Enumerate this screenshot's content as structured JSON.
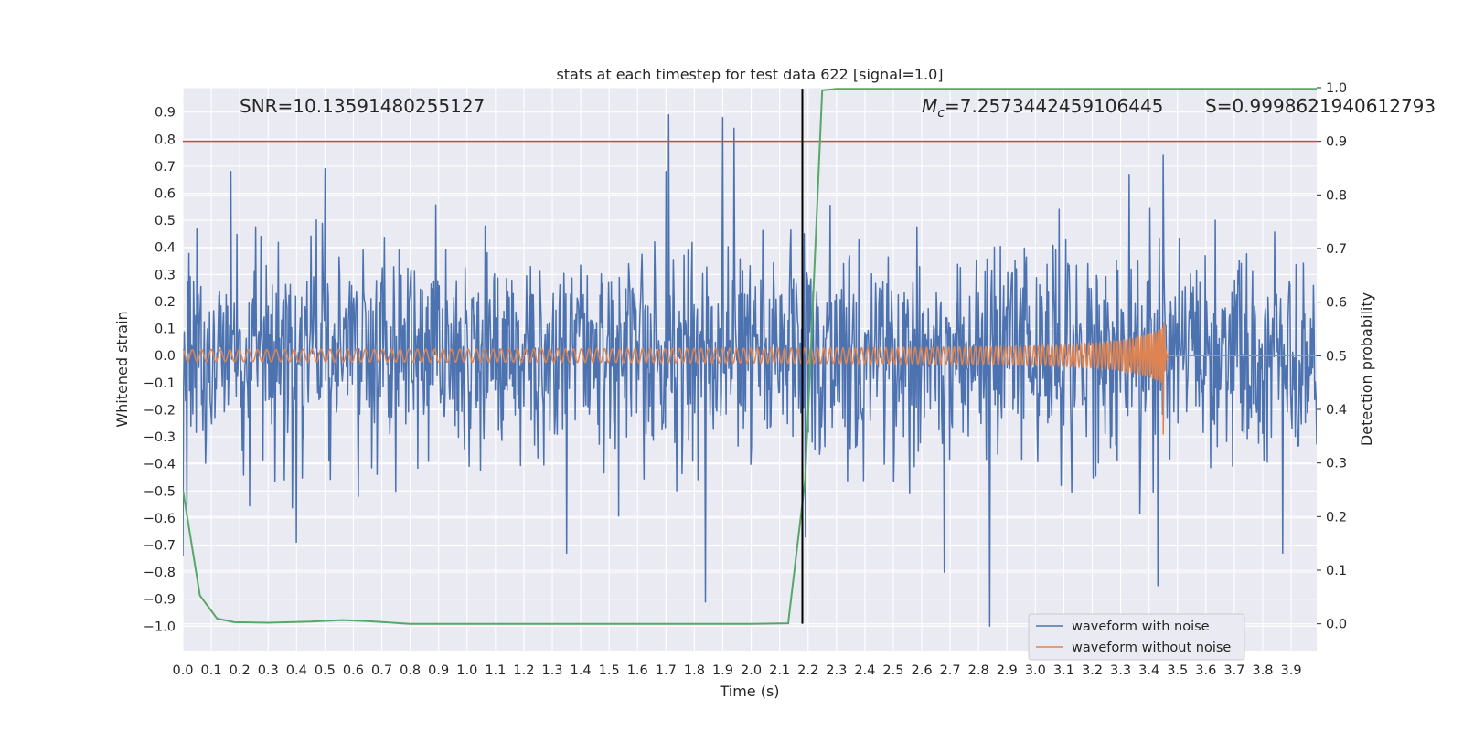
{
  "chart_data": {
    "type": "line",
    "title": "stats at each timestep for test data 622 [signal=1.0]",
    "xlabel": "Time (s)",
    "ylabel": "Whitened strain",
    "y2label": "Detection probability",
    "xlim": [
      0.0,
      3.99
    ],
    "ylim": [
      -1.09,
      0.99
    ],
    "y2lim": [
      -0.05,
      1.0
    ],
    "grid": true,
    "legend_position": "lower-right",
    "x_ticks": [
      "0.0",
      "0.1",
      "0.2",
      "0.3",
      "0.4",
      "0.5",
      "0.6",
      "0.7",
      "0.8",
      "0.9",
      "1.0",
      "1.1",
      "1.2",
      "1.3",
      "1.4",
      "1.5",
      "1.6",
      "1.7",
      "1.8",
      "1.9",
      "2.0",
      "2.1",
      "2.2",
      "2.3",
      "2.4",
      "2.5",
      "2.6",
      "2.7",
      "2.8",
      "2.9",
      "3.0",
      "3.1",
      "3.2",
      "3.3",
      "3.4",
      "3.5",
      "3.6",
      "3.7",
      "3.8",
      "3.9"
    ],
    "y_ticks": [
      "0.9",
      "0.8",
      "0.7",
      "0.6",
      "0.5",
      "0.4",
      "0.3",
      "0.2",
      "0.1",
      "0.0",
      "−0.1",
      "−0.2",
      "−0.3",
      "−0.4",
      "−0.5",
      "−0.6",
      "−0.7",
      "−0.8",
      "−0.9",
      "−1.0"
    ],
    "y2_ticks": [
      "1.0",
      "0.9",
      "0.8",
      "0.7",
      "0.6",
      "0.5",
      "0.4",
      "0.3",
      "0.2",
      "0.1",
      "0.0"
    ],
    "annotations": {
      "snr": "SNR=10.13591480255127",
      "mc_symbol": "M",
      "mc_subscript": "c",
      "mc_value": "=7.2573442459106445",
      "s": "S=0.9998621940612793"
    },
    "threshold": {
      "y2": 0.9,
      "color": "#c44e52"
    },
    "vertical_marker": {
      "x": 2.18,
      "color": "#000000"
    },
    "series": [
      {
        "name": "waveform with noise",
        "color": "#4c72b0",
        "axis": "left",
        "kind": "noise",
        "envelope": [
          0.35,
          0.45
        ],
        "peaks": [
          {
            "x": 0.0,
            "y": -0.74
          },
          {
            "x": 0.17,
            "y": 0.68
          },
          {
            "x": 0.5,
            "y": 0.69
          },
          {
            "x": 0.4,
            "y": -0.69
          },
          {
            "x": 1.35,
            "y": -0.73
          },
          {
            "x": 1.7,
            "y": 0.68
          },
          {
            "x": 1.71,
            "y": 0.89
          },
          {
            "x": 1.84,
            "y": -0.91
          },
          {
            "x": 1.9,
            "y": 0.88
          },
          {
            "x": 1.94,
            "y": 0.84
          },
          {
            "x": 2.19,
            "y": -0.67
          },
          {
            "x": 2.68,
            "y": -0.8
          },
          {
            "x": 2.84,
            "y": -1.0
          },
          {
            "x": 3.43,
            "y": -0.85
          },
          {
            "x": 3.45,
            "y": 0.74
          },
          {
            "x": 3.87,
            "y": -0.73
          },
          {
            "x": 3.33,
            "y": 0.67
          }
        ]
      },
      {
        "name": "waveform without noise",
        "color": "#dd8452",
        "axis": "left",
        "kind": "chirp",
        "merger_time": 3.45,
        "amplitude_start": 0.022,
        "amplitude_peak": 0.31,
        "frequency_start": 30,
        "frequency_end": 150
      },
      {
        "name": "",
        "color": "#55a868",
        "axis": "right",
        "kind": "probability",
        "x": [
          0.0,
          0.06,
          0.12,
          0.18,
          0.3,
          0.45,
          0.56,
          0.65,
          0.8,
          1.0,
          1.5,
          2.0,
          2.13,
          2.19,
          2.25,
          2.3,
          2.6,
          3.0,
          3.99
        ],
        "y": [
          0.25,
          0.053,
          0.01,
          0.003,
          0.002,
          0.004,
          0.007,
          0.005,
          0.0,
          0.0,
          0.0,
          0.0,
          0.001,
          0.27,
          0.995,
          0.998,
          0.998,
          0.998,
          0.998
        ]
      }
    ],
    "legend": [
      "waveform with noise",
      "waveform without noise"
    ]
  }
}
